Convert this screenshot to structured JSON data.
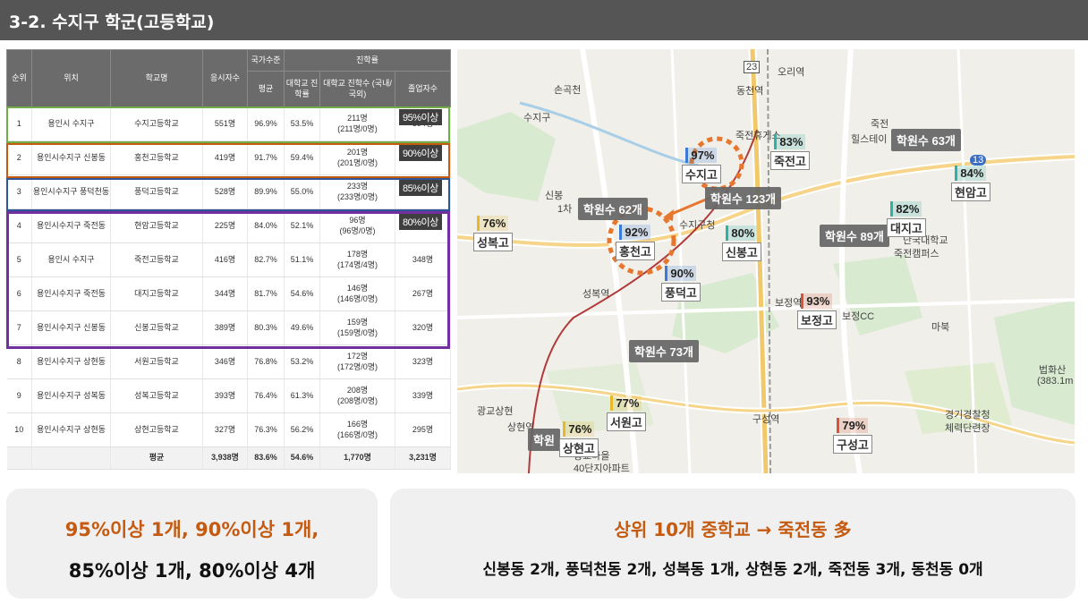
{
  "header": {
    "title": "3-2. 수지구 학군(고등학교)"
  },
  "table": {
    "headers": {
      "rank": "순위",
      "location": "위치",
      "school": "학교명",
      "applicants": "응시자수",
      "national_level": "국가수준",
      "avg": "평균",
      "advancement": "진학률",
      "univ_rate": "대학교 진학률",
      "univ_count": "대학교 진학수 (국내/국외)",
      "graduates": "졸업자수"
    },
    "rows": [
      {
        "rank": "1",
        "loc": "용인시 수지구",
        "school": "수지고등학교",
        "app": "551명",
        "avg": "96.9%",
        "rate": "53.5%",
        "cnt": "211명",
        "cnt2": "(211명/0명)",
        "grad": "394명"
      },
      {
        "rank": "2",
        "loc": "용인시수지구 신봉동",
        "school": "홍천고등학교",
        "app": "419명",
        "avg": "91.7%",
        "rate": "59.4%",
        "cnt": "201명",
        "cnt2": "(201명/0명)",
        "grad": "338명"
      },
      {
        "rank": "3",
        "loc": "용인시수지구 풍덕천동",
        "school": "풍덕고등학교",
        "app": "528명",
        "avg": "89.9%",
        "rate": "55.0%",
        "cnt": "233명",
        "cnt2": "(233명/0명)",
        "grad": "423명"
      },
      {
        "rank": "4",
        "loc": "용인시수지구 죽전동",
        "school": "현암고등학교",
        "app": "225명",
        "avg": "84.0%",
        "rate": "52.1%",
        "cnt": "96명",
        "cnt2": "(96명/0명)",
        "grad": "184명"
      },
      {
        "rank": "5",
        "loc": "용인시 수지구",
        "school": "죽전고등학교",
        "app": "416명",
        "avg": "82.7%",
        "rate": "51.1%",
        "cnt": "178명",
        "cnt2": "(174명/4명)",
        "grad": "348명"
      },
      {
        "rank": "6",
        "loc": "용인시수지구 죽전동",
        "school": "대지고등학교",
        "app": "344명",
        "avg": "81.7%",
        "rate": "54.6%",
        "cnt": "146명",
        "cnt2": "(146명/0명)",
        "grad": "267명"
      },
      {
        "rank": "7",
        "loc": "용인시수지구 신봉동",
        "school": "신봉고등학교",
        "app": "389명",
        "avg": "80.3%",
        "rate": "49.6%",
        "cnt": "159명",
        "cnt2": "(159명/0명)",
        "grad": "320명"
      },
      {
        "rank": "8",
        "loc": "용인시수지구 상현동",
        "school": "서원고등학교",
        "app": "346명",
        "avg": "76.8%",
        "rate": "53.2%",
        "cnt": "172명",
        "cnt2": "(172명/0명)",
        "grad": "323명"
      },
      {
        "rank": "9",
        "loc": "용인시수지구 성복동",
        "school": "성복고등학교",
        "app": "393명",
        "avg": "76.4%",
        "rate": "61.3%",
        "cnt": "208명",
        "cnt2": "(208명/0명)",
        "grad": "339명"
      },
      {
        "rank": "10",
        "loc": "용인시수지구 상현동",
        "school": "상현고등학교",
        "app": "327명",
        "avg": "76.3%",
        "rate": "56.2%",
        "cnt": "166명",
        "cnt2": "(166명/0명)",
        "grad": "295명"
      }
    ],
    "average_row": {
      "label": "평균",
      "app": "3,938명",
      "avg": "83.6%",
      "rate": "54.6%",
      "cnt": "1,770명",
      "grad": "3,231명"
    },
    "tags": [
      "95%이상",
      "90%이상",
      "85%이상",
      "80%이상"
    ]
  },
  "map": {
    "markers": [
      {
        "pct": "97%",
        "name": "수지고",
        "color": "#3a7bd5"
      },
      {
        "pct": "92%",
        "name": "홍천고",
        "color": "#3a7bd5"
      },
      {
        "pct": "90%",
        "name": "풍덕고",
        "color": "#3a7bd5"
      },
      {
        "pct": "84%",
        "name": "현암고",
        "color": "#2bb3a8"
      },
      {
        "pct": "83%",
        "name": "죽전고",
        "color": "#2bb3a8"
      },
      {
        "pct": "82%",
        "name": "대지고",
        "color": "#2bb3a8"
      },
      {
        "pct": "80%",
        "name": "신봉고",
        "color": "#2bb3a8"
      },
      {
        "pct": "93%",
        "name": "보정고",
        "color": "#d9533a"
      },
      {
        "pct": "79%",
        "name": "구성고",
        "color": "#d9533a"
      },
      {
        "pct": "77%",
        "name": "서원고",
        "color": "#e6b92b"
      },
      {
        "pct": "76%",
        "name": "성복고",
        "color": "#e6b92b"
      },
      {
        "pct": "76%",
        "name": "상현고",
        "color": "#e6b92b"
      }
    ],
    "academies": [
      "학원수 63개",
      "학원수 123개",
      "학원수 62개",
      "학원수 89개",
      "학원수 73개",
      "학원"
    ],
    "places": [
      "오리역",
      "손곡천",
      "수지구",
      "동천역",
      "죽전휴게소",
      "죽전",
      "힐스테이",
      "신봉",
      "1차",
      "수지구청",
      "성복역",
      "보정역",
      "마북",
      "법화산",
      "(383.1m",
      "경기경찰청",
      "체력단련장",
      "구성역",
      "광교상현",
      "상현역",
      "광교마을",
      "40단지아파트",
      "단국대학교",
      "죽전캠퍼스",
      "보정CC",
      "23",
      "13"
    ]
  },
  "summary_left": {
    "line1": "95%이상 1개, 90%이상 1개,",
    "line2": "85%이상 1개, 80%이상 4개"
  },
  "summary_right": {
    "line1": "상위 10개 중학교 → 죽전동 多",
    "line2": "신봉동 2개, 풍덕천동 2개, 성복동 1개, 상현동 2개, 죽전동 3개, 동천동 0개"
  },
  "colors": {
    "accent_orange": "#c55a11",
    "green": "#70ad47",
    "brown": "#c55a11",
    "blue": "#2e5597",
    "purple": "#7030a0"
  }
}
